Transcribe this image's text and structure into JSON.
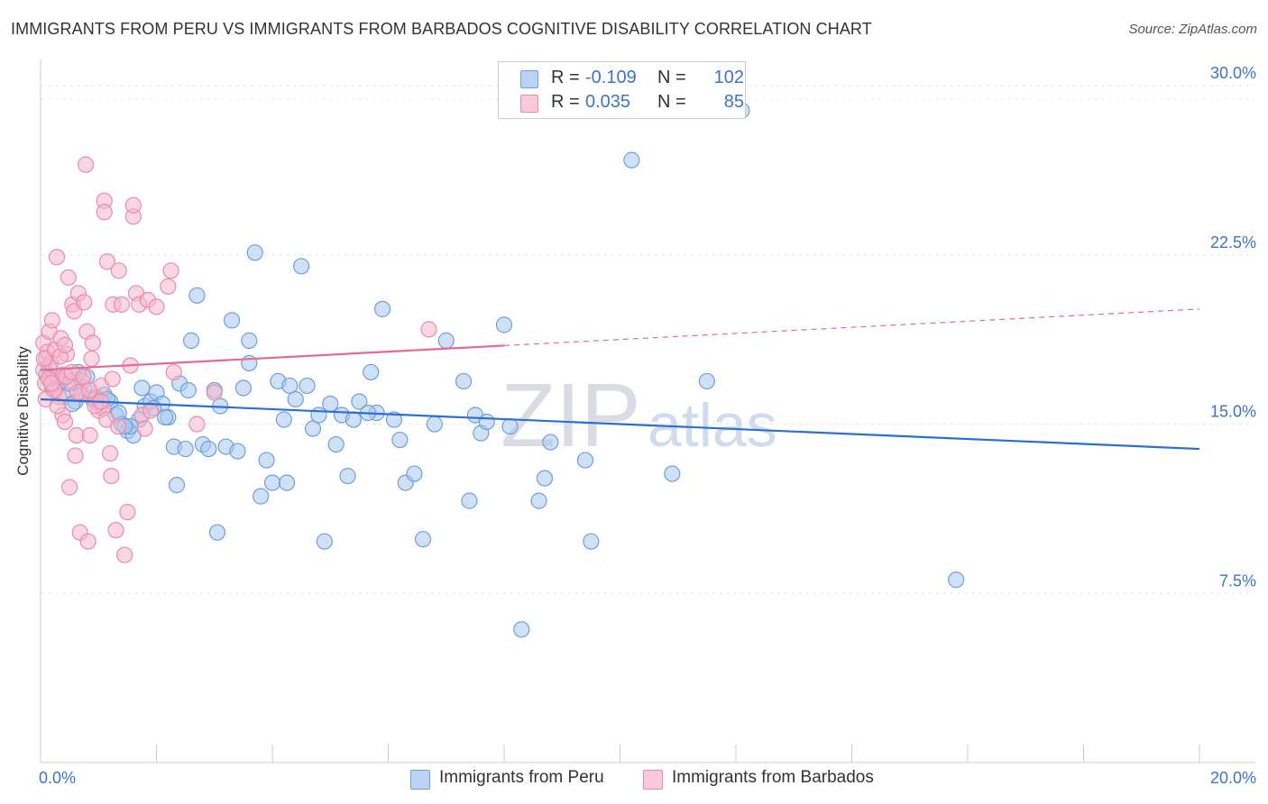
{
  "header": {
    "title": "IMMIGRANTS FROM PERU VS IMMIGRANTS FROM BARBADOS COGNITIVE DISABILITY CORRELATION CHART",
    "source": "Source: ZipAtlas.com"
  },
  "legend": {
    "rows": [
      {
        "r_label": "R =",
        "r_value": "-0.109",
        "n_label": "N =",
        "n_value": "102"
      },
      {
        "r_label": "R =",
        "r_value": "0.035",
        "n_label": "N =",
        "n_value": "85"
      }
    ]
  },
  "bottom_legend": {
    "peru": "Immigrants from Peru",
    "barbados": "Immigrants from Barbados"
  },
  "watermark": {
    "zip": "ZIP",
    "atlas": "atlas"
  },
  "colors": {
    "peru_fill": "#a9c8f0",
    "peru_stroke": "#6d9fdf",
    "peru_line": "#2d6fd0",
    "barbados_fill": "#f6b8cc",
    "barbados_stroke": "#ec8aab",
    "barbados_line": "#e56a95",
    "tick_text": "#3b74c9",
    "grid": "#e6e6e6"
  },
  "chart_data": {
    "type": "scatter",
    "title": "IMMIGRANTS FROM PERU VS IMMIGRANTS FROM BARBADOS COGNITIVE DISABILITY CORRELATION CHART",
    "xlabel": "",
    "ylabel": "Cognitive Disability",
    "xlim": [
      0,
      20
    ],
    "ylim": [
      0,
      31
    ],
    "x_tick_labels": [
      "0.0%",
      "20.0%"
    ],
    "y_ticks": [
      7.5,
      15.0,
      22.5,
      30.0
    ],
    "y_tick_labels": [
      "7.5%",
      "15.0%",
      "22.5%",
      "30.0%"
    ],
    "grid": true,
    "series": [
      {
        "name": "Immigrants from Peru",
        "R": -0.109,
        "N": 102,
        "trend": {
          "x": [
            0.0,
            20.0
          ],
          "y": [
            16.1,
            13.9
          ],
          "dashed_from": null
        },
        "points": [
          [
            0.1,
            17.2
          ],
          [
            0.2,
            16.6
          ],
          [
            0.3,
            17.0
          ],
          [
            0.4,
            16.2
          ],
          [
            0.5,
            16.8
          ],
          [
            0.6,
            16.0
          ],
          [
            0.7,
            16.4
          ],
          [
            0.8,
            17.1
          ],
          [
            0.9,
            16.1
          ],
          [
            1.0,
            15.9
          ],
          [
            1.1,
            16.3
          ],
          [
            1.2,
            16.0
          ],
          [
            1.3,
            15.4
          ],
          [
            1.4,
            15.0
          ],
          [
            1.5,
            14.7
          ],
          [
            1.6,
            14.5
          ],
          [
            1.7,
            15.2
          ],
          [
            1.8,
            15.8
          ],
          [
            1.9,
            16.0
          ],
          [
            2.0,
            16.4
          ],
          [
            2.1,
            15.9
          ],
          [
            2.2,
            15.3
          ],
          [
            2.3,
            14.0
          ],
          [
            2.4,
            16.8
          ],
          [
            2.5,
            13.9
          ],
          [
            2.6,
            18.7
          ],
          [
            2.7,
            20.7
          ],
          [
            2.8,
            14.1
          ],
          [
            2.9,
            13.9
          ],
          [
            3.0,
            16.5
          ],
          [
            3.1,
            15.8
          ],
          [
            3.2,
            14.0
          ],
          [
            3.3,
            19.6
          ],
          [
            3.4,
            13.8
          ],
          [
            3.5,
            16.6
          ],
          [
            3.6,
            17.7
          ],
          [
            3.6,
            18.7
          ],
          [
            3.7,
            22.6
          ],
          [
            3.8,
            11.8
          ],
          [
            3.9,
            13.4
          ],
          [
            4.0,
            12.4
          ],
          [
            4.1,
            16.9
          ],
          [
            4.2,
            15.2
          ],
          [
            4.3,
            16.7
          ],
          [
            4.4,
            16.1
          ],
          [
            4.5,
            22.0
          ],
          [
            4.6,
            16.7
          ],
          [
            4.7,
            14.8
          ],
          [
            4.8,
            15.4
          ],
          [
            4.9,
            9.8
          ],
          [
            5.0,
            15.9
          ],
          [
            5.1,
            14.1
          ],
          [
            5.2,
            15.4
          ],
          [
            5.3,
            12.7
          ],
          [
            5.4,
            15.2
          ],
          [
            5.5,
            16.0
          ],
          [
            5.7,
            17.3
          ],
          [
            5.8,
            15.5
          ],
          [
            5.9,
            20.1
          ],
          [
            6.1,
            15.2
          ],
          [
            6.2,
            14.3
          ],
          [
            6.3,
            12.4
          ],
          [
            6.6,
            9.9
          ],
          [
            6.8,
            15.0
          ],
          [
            7.0,
            18.7
          ],
          [
            7.3,
            16.9
          ],
          [
            7.4,
            11.6
          ],
          [
            7.5,
            15.4
          ],
          [
            7.6,
            14.6
          ],
          [
            7.7,
            15.1
          ],
          [
            8.0,
            19.4
          ],
          [
            8.1,
            14.9
          ],
          [
            8.3,
            5.9
          ],
          [
            8.6,
            11.6
          ],
          [
            8.7,
            12.6
          ],
          [
            8.8,
            14.2
          ],
          [
            9.4,
            13.4
          ],
          [
            9.5,
            9.8
          ],
          [
            10.2,
            26.7
          ],
          [
            10.9,
            12.8
          ],
          [
            11.5,
            16.9
          ],
          [
            12.1,
            28.9
          ],
          [
            15.8,
            8.1
          ],
          [
            0.15,
            17.5
          ],
          [
            0.35,
            16.9
          ],
          [
            0.55,
            15.9
          ],
          [
            0.75,
            16.6
          ],
          [
            0.95,
            16.2
          ],
          [
            1.15,
            16.1
          ],
          [
            1.35,
            15.5
          ],
          [
            1.55,
            14.9
          ],
          [
            1.75,
            16.6
          ],
          [
            1.95,
            15.7
          ],
          [
            2.15,
            15.3
          ],
          [
            2.35,
            12.3
          ],
          [
            3.05,
            10.2
          ],
          [
            4.25,
            12.4
          ],
          [
            5.65,
            15.5
          ],
          [
            6.45,
            12.8
          ],
          [
            2.55,
            16.5
          ],
          [
            1.45,
            14.9
          ],
          [
            0.65,
            17.3
          ]
        ]
      },
      {
        "name": "Immigrants from Barbados",
        "R": 0.035,
        "N": 85,
        "trend": {
          "x": [
            0.0,
            20.0
          ],
          "y": [
            17.4,
            20.1
          ],
          "dashed_from": 8.0
        },
        "points": [
          [
            0.05,
            18.6
          ],
          [
            0.05,
            17.4
          ],
          [
            0.08,
            16.8
          ],
          [
            0.1,
            17.9
          ],
          [
            0.12,
            18.2
          ],
          [
            0.15,
            19.1
          ],
          [
            0.18,
            17.7
          ],
          [
            0.2,
            19.6
          ],
          [
            0.22,
            16.5
          ],
          [
            0.25,
            18.3
          ],
          [
            0.28,
            22.4
          ],
          [
            0.3,
            17.1
          ],
          [
            0.32,
            16.2
          ],
          [
            0.35,
            18.8
          ],
          [
            0.38,
            15.4
          ],
          [
            0.4,
            17.2
          ],
          [
            0.42,
            15.1
          ],
          [
            0.45,
            18.1
          ],
          [
            0.48,
            21.5
          ],
          [
            0.5,
            12.2
          ],
          [
            0.52,
            16.9
          ],
          [
            0.55,
            20.3
          ],
          [
            0.58,
            20.0
          ],
          [
            0.6,
            13.6
          ],
          [
            0.62,
            14.5
          ],
          [
            0.65,
            20.8
          ],
          [
            0.68,
            10.2
          ],
          [
            0.7,
            16.3
          ],
          [
            0.72,
            16.9
          ],
          [
            0.75,
            20.4
          ],
          [
            0.78,
            26.5
          ],
          [
            0.8,
            19.1
          ],
          [
            0.82,
            9.8
          ],
          [
            0.85,
            14.5
          ],
          [
            0.88,
            17.9
          ],
          [
            0.9,
            18.6
          ],
          [
            0.95,
            16.1
          ],
          [
            1.0,
            15.6
          ],
          [
            1.05,
            16.7
          ],
          [
            1.08,
            15.7
          ],
          [
            1.1,
            24.9
          ],
          [
            1.1,
            24.4
          ],
          [
            1.15,
            22.2
          ],
          [
            1.2,
            13.7
          ],
          [
            1.22,
            12.7
          ],
          [
            1.25,
            20.3
          ],
          [
            1.3,
            10.3
          ],
          [
            1.35,
            21.8
          ],
          [
            1.4,
            20.3
          ],
          [
            1.45,
            9.2
          ],
          [
            1.5,
            11.1
          ],
          [
            1.55,
            17.6
          ],
          [
            1.6,
            24.2
          ],
          [
            1.6,
            24.7
          ],
          [
            1.65,
            20.8
          ],
          [
            1.7,
            20.3
          ],
          [
            1.75,
            15.4
          ],
          [
            1.8,
            14.8
          ],
          [
            1.85,
            20.5
          ],
          [
            1.9,
            15.6
          ],
          [
            2.0,
            20.2
          ],
          [
            2.2,
            21.1
          ],
          [
            2.25,
            21.8
          ],
          [
            2.3,
            17.3
          ],
          [
            2.7,
            15.0
          ],
          [
            3.0,
            16.4
          ],
          [
            6.7,
            19.2
          ],
          [
            0.06,
            17.9
          ],
          [
            0.14,
            17.0
          ],
          [
            0.24,
            16.5
          ],
          [
            0.34,
            18.0
          ],
          [
            0.44,
            17.1
          ],
          [
            0.54,
            17.3
          ],
          [
            0.64,
            16.4
          ],
          [
            0.74,
            17.1
          ],
          [
            0.84,
            16.5
          ],
          [
            0.94,
            15.8
          ],
          [
            1.04,
            16.0
          ],
          [
            1.14,
            15.2
          ],
          [
            1.24,
            17.0
          ],
          [
            0.09,
            16.1
          ],
          [
            0.19,
            16.8
          ],
          [
            0.29,
            15.8
          ],
          [
            1.34,
            14.9
          ],
          [
            0.42,
            18.5
          ]
        ]
      }
    ]
  }
}
